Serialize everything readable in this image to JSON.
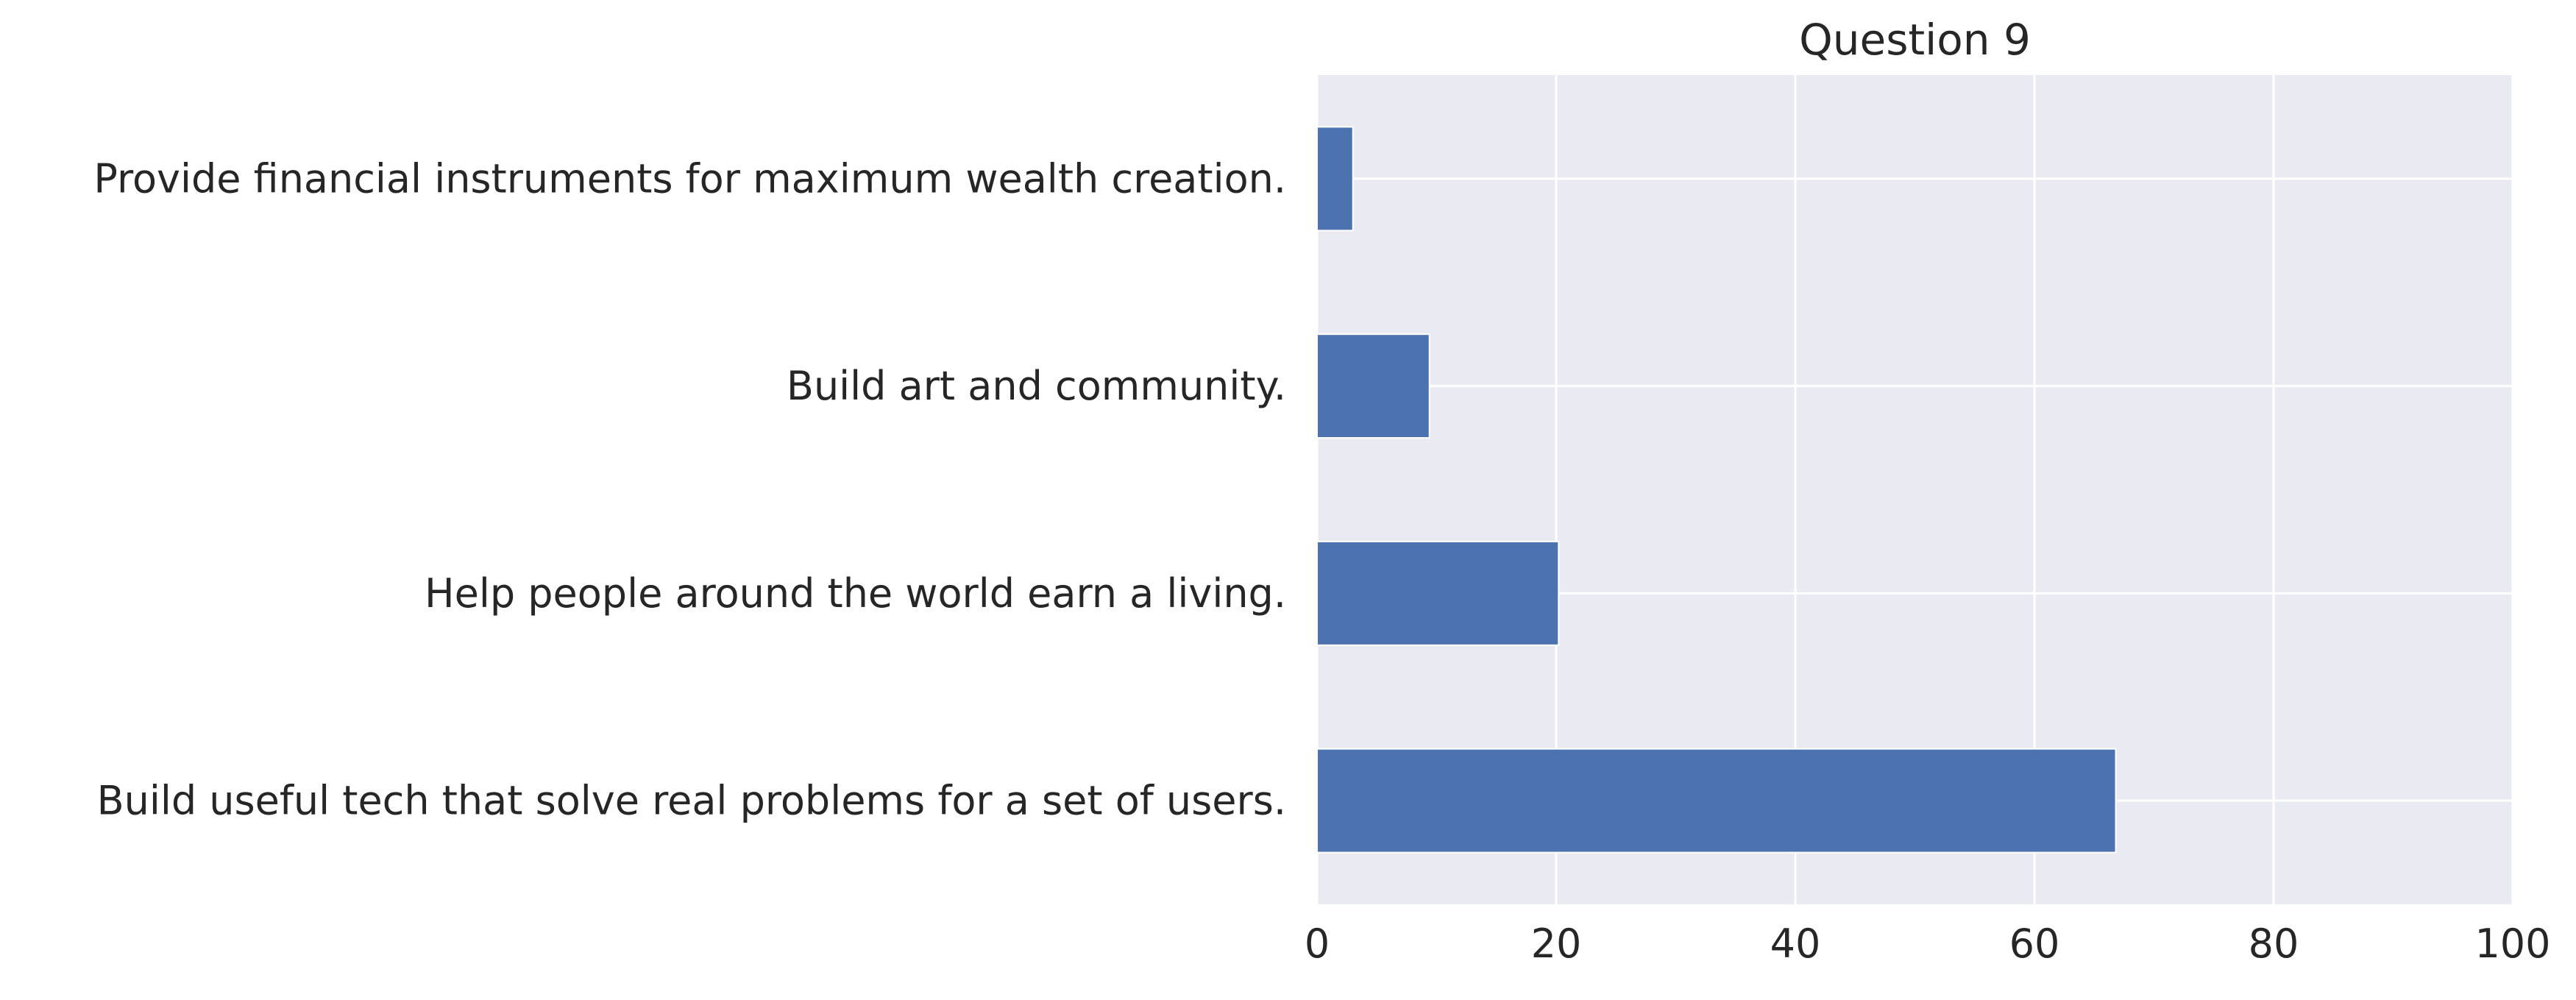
{
  "chart_data": {
    "type": "bar",
    "orientation": "horizontal",
    "title": "Question 9",
    "xlabel": "",
    "ylabel": "",
    "categories": [
      "Provide financial instruments for maximum wealth creation.",
      "Build art and community.",
      "Help people around the world earn a living.",
      "Build useful tech that solve real problems for a set of users."
    ],
    "values": [
      3,
      9.4,
      20.2,
      66.8
    ],
    "xlim": [
      0,
      100
    ],
    "xticks": [
      0,
      20,
      40,
      60,
      80,
      100
    ],
    "grid": true,
    "bar_color": "#4c72b0",
    "background_color": "#eaeaf2",
    "grid_color": "#ffffff"
  }
}
